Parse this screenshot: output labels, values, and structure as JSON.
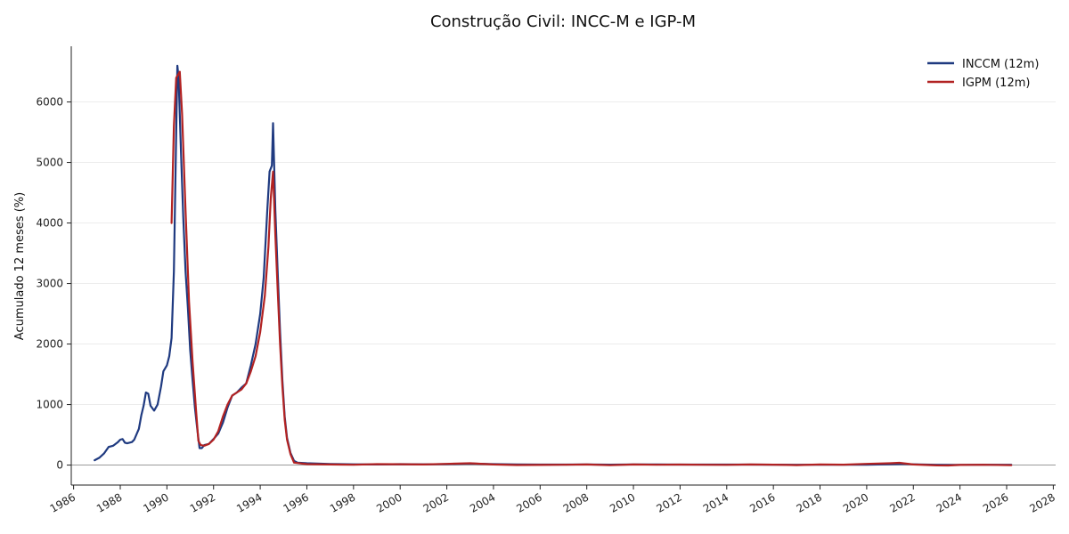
{
  "chart_data": {
    "type": "line",
    "title": "Construção Civil: INCC-M e IGP-M",
    "xlabel": "",
    "ylabel": "Acumulado 12 meses (%)",
    "xlim": [
      1985.9,
      2028.1
    ],
    "ylim": [
      -330,
      6920
    ],
    "grid": "horizontal",
    "legend_position": "top-right",
    "x_ticks": [
      1986,
      1988,
      1990,
      1992,
      1994,
      1996,
      1998,
      2000,
      2002,
      2004,
      2006,
      2008,
      2010,
      2012,
      2014,
      2016,
      2018,
      2020,
      2022,
      2024,
      2026,
      2028
    ],
    "y_ticks": [
      0,
      1000,
      2000,
      3000,
      4000,
      5000,
      6000
    ],
    "zero_line": true,
    "series": [
      {
        "name": "INCCM (12m)",
        "color": "#1f3a80",
        "points": [
          [
            1986.9,
            80
          ],
          [
            1987.1,
            120
          ],
          [
            1987.3,
            190
          ],
          [
            1987.5,
            300
          ],
          [
            1987.7,
            320
          ],
          [
            1987.9,
            380
          ],
          [
            1988.0,
            420
          ],
          [
            1988.1,
            430
          ],
          [
            1988.2,
            370
          ],
          [
            1988.3,
            360
          ],
          [
            1988.5,
            380
          ],
          [
            1988.6,
            420
          ],
          [
            1988.8,
            600
          ],
          [
            1988.9,
            820
          ],
          [
            1989.0,
            980
          ],
          [
            1989.1,
            1200
          ],
          [
            1989.2,
            1180
          ],
          [
            1989.3,
            980
          ],
          [
            1989.45,
            900
          ],
          [
            1989.6,
            1000
          ],
          [
            1989.75,
            1300
          ],
          [
            1989.85,
            1550
          ],
          [
            1990.0,
            1650
          ],
          [
            1990.1,
            1800
          ],
          [
            1990.2,
            2100
          ],
          [
            1990.3,
            3200
          ],
          [
            1990.4,
            5500
          ],
          [
            1990.45,
            6600
          ],
          [
            1990.5,
            6400
          ],
          [
            1990.6,
            5200
          ],
          [
            1990.7,
            4100
          ],
          [
            1990.8,
            3200
          ],
          [
            1990.9,
            2600
          ],
          [
            1991.0,
            1900
          ],
          [
            1991.1,
            1400
          ],
          [
            1991.2,
            950
          ],
          [
            1991.3,
            600
          ],
          [
            1991.4,
            280
          ],
          [
            1991.5,
            280
          ],
          [
            1991.6,
            330
          ],
          [
            1991.8,
            350
          ],
          [
            1992.0,
            430
          ],
          [
            1992.2,
            520
          ],
          [
            1992.4,
            700
          ],
          [
            1992.6,
            950
          ],
          [
            1992.8,
            1150
          ],
          [
            1993.0,
            1200
          ],
          [
            1993.2,
            1280
          ],
          [
            1993.4,
            1350
          ],
          [
            1993.6,
            1650
          ],
          [
            1993.8,
            2000
          ],
          [
            1994.0,
            2500
          ],
          [
            1994.15,
            3100
          ],
          [
            1994.3,
            4200
          ],
          [
            1994.4,
            4850
          ],
          [
            1994.5,
            4950
          ],
          [
            1994.55,
            5650
          ],
          [
            1994.65,
            4200
          ],
          [
            1994.75,
            3200
          ],
          [
            1994.85,
            2200
          ],
          [
            1994.95,
            1400
          ],
          [
            1995.05,
            800
          ],
          [
            1995.15,
            450
          ],
          [
            1995.3,
            200
          ],
          [
            1995.45,
            70
          ],
          [
            1995.6,
            40
          ],
          [
            1996.0,
            30
          ],
          [
            1997.0,
            18
          ],
          [
            1998.0,
            12
          ],
          [
            1999.0,
            10
          ],
          [
            2000.0,
            15
          ],
          [
            2001.0,
            12
          ],
          [
            2002.0,
            15
          ],
          [
            2003.0,
            25
          ],
          [
            2004.0,
            15
          ],
          [
            2005.0,
            10
          ],
          [
            2006.0,
            8
          ],
          [
            2007.0,
            8
          ],
          [
            2008.0,
            10
          ],
          [
            2009.0,
            7
          ],
          [
            2010.0,
            10
          ],
          [
            2011.0,
            9
          ],
          [
            2012.0,
            8
          ],
          [
            2013.0,
            8
          ],
          [
            2014.0,
            8
          ],
          [
            2015.0,
            8
          ],
          [
            2016.0,
            7
          ],
          [
            2017.0,
            5
          ],
          [
            2018.0,
            5
          ],
          [
            2019.0,
            5
          ],
          [
            2020.0,
            6
          ],
          [
            2021.0,
            14
          ],
          [
            2021.6,
            18
          ],
          [
            2022.0,
            12
          ],
          [
            2023.0,
            5
          ],
          [
            2024.0,
            4
          ],
          [
            2025.0,
            6
          ],
          [
            2026.2,
            6
          ]
        ]
      },
      {
        "name": "IGPM (12m)",
        "color": "#b22222",
        "points": [
          [
            1990.2,
            4000
          ],
          [
            1990.3,
            5600
          ],
          [
            1990.4,
            6400
          ],
          [
            1990.55,
            6500
          ],
          [
            1990.65,
            5800
          ],
          [
            1990.8,
            4200
          ],
          [
            1990.95,
            2700
          ],
          [
            1991.1,
            1700
          ],
          [
            1991.25,
            900
          ],
          [
            1991.35,
            400
          ],
          [
            1991.45,
            330
          ],
          [
            1991.6,
            320
          ],
          [
            1991.8,
            350
          ],
          [
            1992.0,
            420
          ],
          [
            1992.2,
            560
          ],
          [
            1992.4,
            800
          ],
          [
            1992.6,
            1000
          ],
          [
            1992.8,
            1150
          ],
          [
            1993.0,
            1200
          ],
          [
            1993.2,
            1250
          ],
          [
            1993.4,
            1350
          ],
          [
            1993.6,
            1550
          ],
          [
            1993.8,
            1800
          ],
          [
            1994.0,
            2200
          ],
          [
            1994.2,
            2800
          ],
          [
            1994.35,
            3600
          ],
          [
            1994.45,
            4400
          ],
          [
            1994.55,
            4850
          ],
          [
            1994.65,
            3800
          ],
          [
            1994.75,
            2900
          ],
          [
            1994.85,
            2000
          ],
          [
            1994.95,
            1300
          ],
          [
            1995.05,
            750
          ],
          [
            1995.15,
            420
          ],
          [
            1995.3,
            180
          ],
          [
            1995.45,
            40
          ],
          [
            1996.0,
            15
          ],
          [
            1997.0,
            10
          ],
          [
            1998.0,
            5
          ],
          [
            1999.0,
            15
          ],
          [
            2000.0,
            14
          ],
          [
            2001.0,
            10
          ],
          [
            2002.0,
            20
          ],
          [
            2003.0,
            30
          ],
          [
            2004.0,
            10
          ],
          [
            2005.0,
            1
          ],
          [
            2006.0,
            3
          ],
          [
            2007.0,
            6
          ],
          [
            2008.0,
            10
          ],
          [
            2009.0,
            -2
          ],
          [
            2010.0,
            10
          ],
          [
            2011.0,
            5
          ],
          [
            2012.0,
            8
          ],
          [
            2013.0,
            5
          ],
          [
            2014.0,
            4
          ],
          [
            2015.0,
            10
          ],
          [
            2016.0,
            7
          ],
          [
            2017.0,
            -1
          ],
          [
            2018.0,
            9
          ],
          [
            2019.0,
            7
          ],
          [
            2020.0,
            20
          ],
          [
            2021.0,
            30
          ],
          [
            2021.4,
            37
          ],
          [
            2022.0,
            10
          ],
          [
            2023.0,
            -5
          ],
          [
            2023.5,
            -7
          ],
          [
            2024.0,
            2
          ],
          [
            2025.0,
            6
          ],
          [
            2026.2,
            -2
          ]
        ]
      }
    ]
  }
}
